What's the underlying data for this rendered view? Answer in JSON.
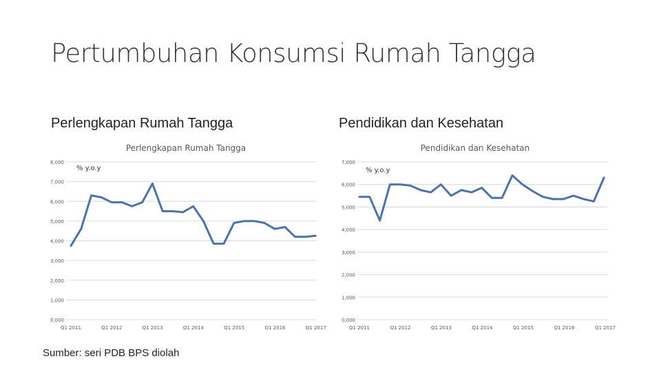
{
  "slide": {
    "title": "Pertumbuhan Konsumsi Rumah Tangga",
    "left_heading": "Perlengkapan Rumah Tangga",
    "right_heading": "Pendidikan dan Kesehatan",
    "source": "Sumber: seri PDB BPS diolah"
  },
  "colors": {
    "line": "#4a72b0",
    "grid": "#d9d9d9",
    "text": "#595959"
  },
  "chart_data": [
    {
      "type": "line",
      "title": "Perlengkapan Rumah Tangga",
      "unit_label": "% y.o.y",
      "ylim": [
        0,
        8
      ],
      "yticks": [
        "0,000",
        "1,000",
        "2,000",
        "3,000",
        "4,000",
        "5,000",
        "6,000",
        "7,000",
        "8,000"
      ],
      "xtick_labels": [
        "Q1 2011",
        "Q1 2012",
        "Q1 2013",
        "Q1 2014",
        "Q1 2015",
        "Q1 2016",
        "Q1 2017"
      ],
      "grid": true,
      "series": [
        {
          "values": [
            3.75,
            4.6,
            6.3,
            6.2,
            5.95,
            5.95,
            5.75,
            5.95,
            6.9,
            5.5,
            5.5,
            5.45,
            5.75,
            5.0,
            3.85,
            3.85,
            4.9,
            5.0,
            5.0,
            4.9,
            4.6,
            4.7,
            4.2,
            4.2,
            4.25
          ]
        }
      ]
    },
    {
      "type": "line",
      "title": "Pendidikan dan Kesehatan",
      "unit_label": "% y.o.y",
      "ylim": [
        0,
        7
      ],
      "yticks": [
        "0,000",
        "1,000",
        "2,000",
        "3,000",
        "4,000",
        "5,000",
        "6,000",
        "7,000"
      ],
      "xtick_labels": [
        "Q1 2011",
        "Q1 2012",
        "Q1 2013",
        "Q1 2014",
        "Q1 2015",
        "Q1 2016",
        "Q1 2017"
      ],
      "grid": true,
      "series": [
        {
          "values": [
            5.45,
            5.45,
            4.4,
            6.0,
            6.0,
            5.95,
            5.75,
            5.65,
            6.0,
            5.5,
            5.75,
            5.65,
            5.85,
            5.4,
            5.4,
            6.4,
            6.0,
            5.7,
            5.45,
            5.35,
            5.35,
            5.5,
            5.35,
            5.25,
            6.3
          ]
        }
      ]
    }
  ]
}
